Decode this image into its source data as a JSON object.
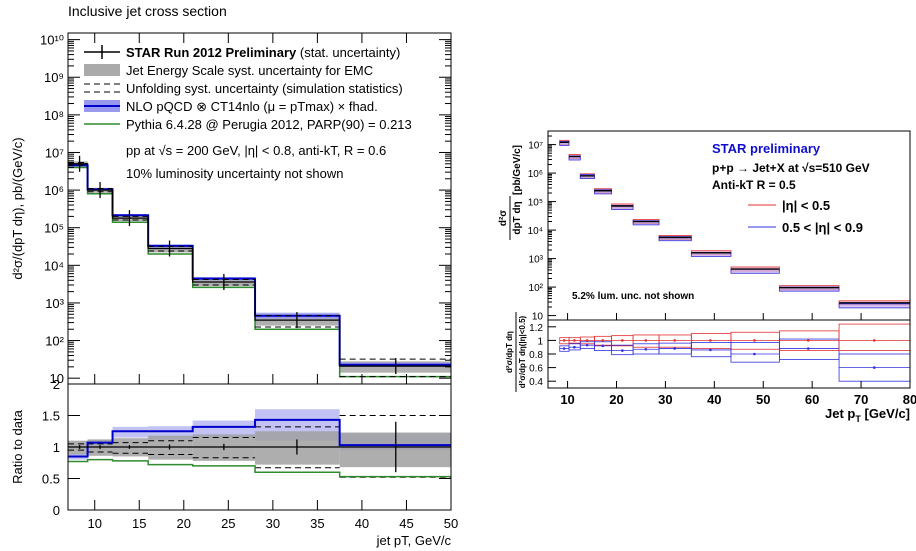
{
  "chart_data": [
    {
      "type": "step",
      "title": "Inclusive jet cross section",
      "ylabel": "d²σ/(dpT dη), pb/(GeV/c)",
      "ylabel_ratio": "Ratio to data",
      "xlabel": "jet pT, GeV/c",
      "xlim": [
        7,
        50
      ],
      "ylim_log": [
        7,
        15000000000.0
      ],
      "ylim_ratio": [
        0,
        2
      ],
      "yscale": "log",
      "x_ticks": [
        "10",
        "15",
        "20",
        "25",
        "30",
        "35",
        "40",
        "45",
        "50"
      ],
      "ratio_ticks": [
        "0",
        "0.5",
        "1",
        "1.5",
        "2"
      ],
      "y_ticks": [
        "10",
        "10²",
        "10³",
        "10⁴",
        "10⁵",
        "10⁶",
        "10⁷",
        "10⁸",
        "10⁹",
        "10¹⁰"
      ],
      "bins": [
        [
          7,
          9.2
        ],
        [
          9.2,
          12
        ],
        [
          12,
          16
        ],
        [
          16,
          21
        ],
        [
          21,
          28
        ],
        [
          28,
          37.5
        ],
        [
          37.5,
          50
        ]
      ],
      "bin_centers": [
        8.3,
        10.6,
        13.9,
        18.4,
        24.5,
        32.7,
        43.8
      ],
      "legend": [
        {
          "label": "STAR Run 2012 Preliminary",
          "suffix": "(stat. uncertainty)",
          "style": "errorbar",
          "color": "#000000"
        },
        {
          "label": "Jet Energy Scale syst. uncertainty for EMC",
          "style": "box",
          "color": "#999999"
        },
        {
          "label": "Unfolding syst. uncertainty (simulation statistics)",
          "style": "dashed",
          "color": "#000000"
        },
        {
          "label": "NLO pQCD ⊗ CT14nlo (μ = pTmax) × fhad.",
          "style": "band",
          "color": "#0000cc"
        },
        {
          "label": "Pythia 6.4.28 @ Perugia 2012, PARP(90) = 0.213",
          "style": "line",
          "color": "#2e8b2e"
        }
      ],
      "annotations": [
        "pp at √s = 200 GeV, |η| < 0.8, anti-kT, R = 0.6",
        "10% luminosity uncertainty not shown"
      ],
      "series": [
        {
          "name": "STAR Run 2012 Preliminary",
          "values": [
            5000000,
            1000000,
            180000,
            28000,
            3600,
            350,
            21
          ]
        },
        {
          "name": "Jet Energy Scale syst. uncertainty for EMC",
          "values_low": [
            4200000,
            850000,
            150000,
            22000,
            2800,
            250,
            14
          ],
          "values_high": [
            5800000,
            1150000,
            210000,
            34000,
            4400,
            450,
            28
          ]
        },
        {
          "name": "Unfolding syst. uncertainty (simulation statistics)",
          "values_low": [
            4600000,
            900000,
            160000,
            24000,
            3000,
            230,
            11
          ],
          "values_high": [
            5400000,
            1100000,
            200000,
            32000,
            4200,
            460,
            32
          ]
        },
        {
          "name": "NLO pQCD ⊗ CT14nlo (μ = pTmax) × fhad.",
          "values_low": [
            4300000,
            1000000,
            200000,
            30000,
            4000,
            380,
            20
          ],
          "values_high": [
            4800000,
            1100000,
            230000,
            36000,
            4900,
            550,
            26
          ]
        },
        {
          "name": "Pythia 6.4.28 @ Perugia 2012, PARP(90) = 0.213",
          "values": [
            4000000,
            800000,
            140000,
            20000,
            2600,
            200,
            11
          ]
        }
      ],
      "ratio": {
        "data_center": 1,
        "stat_err": [
          0.03,
          0.03,
          0.03,
          0.04,
          0.05,
          0.12,
          0.4
        ],
        "jes_low": [
          0.88,
          0.86,
          0.85,
          0.8,
          0.78,
          0.72,
          0.68
        ],
        "jes_high": [
          1.1,
          1.12,
          1.14,
          1.18,
          1.2,
          1.25,
          1.23
        ],
        "unfold_low": [
          0.95,
          0.92,
          0.9,
          0.88,
          0.83,
          0.67,
          0.52
        ],
        "unfold_high": [
          1.05,
          1.05,
          1.07,
          1.1,
          1.15,
          1.32,
          1.5
        ],
        "nlo_low": [
          0.8,
          1.0,
          1.15,
          1.12,
          1.15,
          1.1,
          0.95
        ],
        "nlo_high": [
          0.9,
          1.12,
          1.32,
          1.33,
          1.42,
          1.6,
          1.22
        ],
        "nlo_center": [
          0.85,
          1.07,
          1.25,
          1.25,
          1.32,
          1.43,
          1.03
        ],
        "pythia": [
          0.77,
          0.8,
          0.78,
          0.72,
          0.7,
          0.6,
          0.53
        ]
      }
    },
    {
      "type": "step",
      "xlabel_pre": "Jet p",
      "xlabel_sub": "T",
      "xlabel_post": " [GeV/c]",
      "ylabel_top": "[pb/GeV/c]",
      "ylabel_frac_num": "d²σ",
      "ylabel_frac_den": "dpT dη",
      "ylabel_bottom_num": "d²σ/dpT dη",
      "ylabel_bottom_den": "d²σ/dpT dη(|η|<0.5)",
      "x_ticks": [
        "10",
        "20",
        "30",
        "40",
        "50",
        "60",
        "70",
        "80"
      ],
      "y_ticks": [
        "10",
        "10²",
        "10³",
        "10⁴",
        "10⁵",
        "10⁶",
        "10⁷"
      ],
      "ratio_ticks": [
        "0.4",
        "0.6",
        "0.8",
        "1",
        "1.2"
      ],
      "xlim": [
        6,
        80
      ],
      "ylim_log": [
        7,
        30000000.0
      ],
      "ylim_ratio": [
        0.3,
        1.3
      ],
      "yscale": "log",
      "texts": {
        "title": "STAR preliminary",
        "process": "p+p → Jet+X at √s=510 GeV",
        "algo": "Anti-kT R = 0.5",
        "lum": "5.2% lum. unc. not shown"
      },
      "bins": [
        [
          8.4,
          10.3
        ],
        [
          10.3,
          12.6
        ],
        [
          12.6,
          15.5
        ],
        [
          15.5,
          19.0
        ],
        [
          19.0,
          23.4
        ],
        [
          23.4,
          28.7
        ],
        [
          28.7,
          35.3
        ],
        [
          35.3,
          43.4
        ],
        [
          43.4,
          53.3
        ],
        [
          53.3,
          65.5
        ],
        [
          65.5,
          80.0
        ]
      ],
      "bin_centers": [
        9.3,
        11.4,
        14.0,
        17.2,
        21.2,
        26.0,
        31.9,
        39.2,
        48.2,
        59.2,
        72.7
      ],
      "series": [
        {
          "name": "|η| < 0.5",
          "color": "#e03030",
          "values": [
            12000000,
            3800000,
            800000,
            240000,
            70000,
            20000,
            5500,
            1600,
            430,
            95,
            28
          ]
        },
        {
          "name": "0.5 < |η| < 0.9",
          "color": "#3030e0",
          "values": [
            11000000,
            3400000,
            760000,
            220000,
            62000,
            18000,
            5000,
            1400,
            360,
            85,
            22
          ]
        }
      ],
      "ratio": {
        "eta0_center": [
          1.0,
          1.0,
          1.0,
          1.0,
          1.0,
          1.0,
          1.0,
          1.0,
          1.0,
          1.0,
          1.0
        ],
        "eta0_low": [
          0.95,
          0.96,
          0.95,
          0.93,
          0.92,
          0.9,
          0.9,
          0.88,
          0.87,
          0.85,
          0.85
        ],
        "eta0_high": [
          1.04,
          1.04,
          1.05,
          1.06,
          1.07,
          1.08,
          1.08,
          1.1,
          1.12,
          1.14,
          1.24
        ],
        "eta1_center": [
          0.88,
          0.9,
          0.93,
          0.92,
          0.85,
          0.87,
          0.88,
          0.86,
          0.8,
          0.88,
          0.6
        ],
        "eta1_low": [
          0.84,
          0.86,
          0.88,
          0.85,
          0.79,
          0.8,
          0.8,
          0.76,
          0.68,
          0.72,
          0.4
        ],
        "eta1_high": [
          0.92,
          0.95,
          0.98,
          0.98,
          0.93,
          0.95,
          0.96,
          0.97,
          0.97,
          1.02,
          0.8
        ]
      }
    }
  ]
}
